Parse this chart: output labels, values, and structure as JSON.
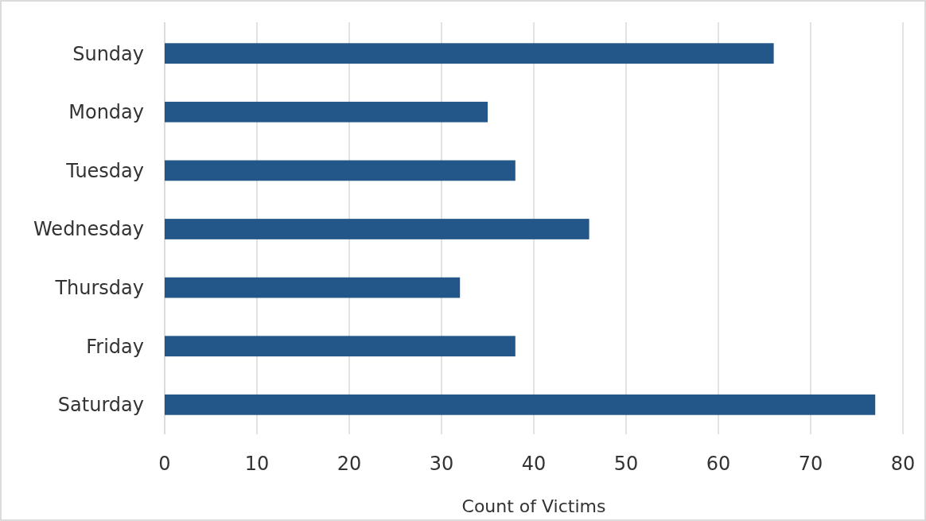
{
  "chart_data": {
    "type": "bar",
    "orientation": "horizontal",
    "xlabel": "Count of Victims",
    "categories": [
      "Sunday",
      "Monday",
      "Tuesday",
      "Wednesday",
      "Thursday",
      "Friday",
      "Saturday"
    ],
    "values": [
      66,
      35,
      38,
      46,
      32,
      38,
      77
    ],
    "color": "#235789",
    "xlim": [
      0,
      80
    ],
    "xticks": [
      0,
      10,
      20,
      30,
      40,
      50,
      60,
      70,
      80
    ],
    "grid": "x"
  }
}
